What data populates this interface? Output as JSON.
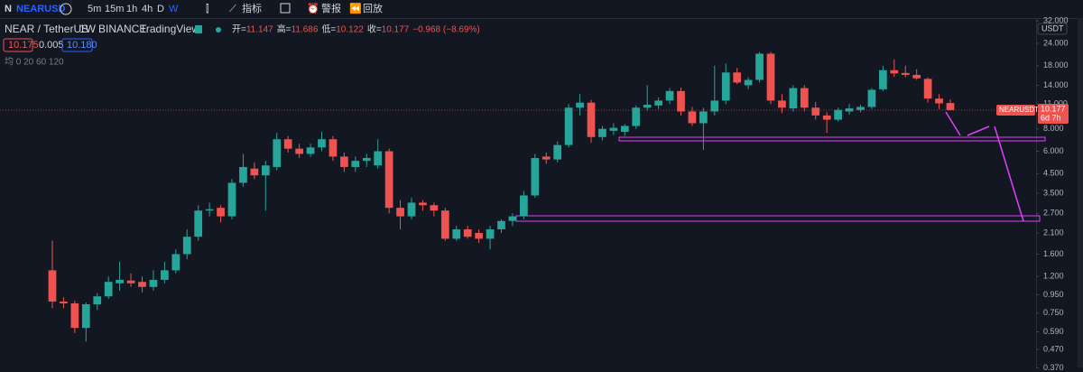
{
  "toolbar": {
    "symbol": "NEARUSD",
    "intervals": [
      "5m",
      "15m",
      "1h",
      "4h",
      "D",
      "W"
    ],
    "indicators": "指标",
    "alerts": "警报",
    "replay": "回放"
  },
  "legend": {
    "pair": "NEAR / TetherUS",
    "interval": "1W",
    "exchange": "BINANCE",
    "source": "TradingView",
    "ohlc": [
      {
        "label": "开=",
        "value": "11.147"
      },
      {
        "label": "高=",
        "value": "11.686"
      },
      {
        "label": "低=",
        "value": "10.122"
      },
      {
        "label": "收=",
        "value": "10.177"
      }
    ],
    "change": "−0.968 (−8.69%)",
    "bid": "10.175",
    "spread": "0.005",
    "ask": "10.180",
    "ma": "均 0 20 60 120"
  },
  "chart_data": {
    "type": "candlestick",
    "log_scale": true,
    "up_color": "#26a69a",
    "down_color": "#ef5350",
    "open": [
      1.3,
      0.87,
      0.85,
      0.62,
      0.84,
      0.93,
      1.1,
      1.14,
      1.12,
      1.05,
      1.15,
      1.3,
      1.6,
      2.0,
      2.8,
      2.9,
      2.6,
      4.0,
      4.8,
      4.4,
      4.9,
      7.0,
      6.2,
      5.8,
      6.3,
      7.0,
      5.6,
      4.9,
      5.3,
      5.0,
      6.0,
      2.9,
      2.6,
      3.1,
      3.0,
      2.8,
      1.95,
      2.2,
      2.1,
      1.95,
      2.2,
      2.45,
      2.6,
      3.4,
      5.6,
      5.4,
      6.5,
      10.5,
      11.2,
      7.2,
      7.8,
      7.7,
      8.3,
      10.5,
      10.8,
      11.5,
      13.0,
      10.0,
      8.6,
      10.0,
      11.5,
      16.5,
      14.0,
      15.0,
      21.0,
      11.5,
      10.4,
      13.5,
      10.5,
      9.5,
      9.0,
      10.0,
      10.2,
      10.6,
      13.3,
      17.0,
      16.4,
      16.0,
      15.2,
      11.8,
      11.147
    ],
    "high": [
      1.9,
      0.92,
      0.88,
      0.86,
      0.97,
      1.2,
      1.45,
      1.25,
      1.2,
      1.3,
      1.45,
      1.7,
      2.2,
      3.0,
      3.1,
      3.0,
      4.2,
      5.8,
      5.2,
      5.3,
      7.6,
      7.3,
      6.6,
      6.6,
      7.7,
      7.3,
      5.9,
      5.6,
      5.8,
      7.0,
      6.2,
      3.2,
      3.3,
      3.2,
      3.1,
      2.9,
      2.3,
      2.3,
      2.2,
      2.3,
      2.5,
      2.7,
      3.6,
      5.8,
      5.9,
      6.8,
      11.0,
      12.5,
      11.6,
      8.3,
      8.6,
      8.5,
      10.8,
      14.0,
      12.0,
      13.5,
      13.6,
      10.6,
      10.5,
      18.0,
      18.5,
      17.5,
      15.5,
      21.5,
      21.5,
      12.5,
      14.0,
      14.0,
      11.3,
      9.9,
      10.5,
      11.0,
      10.9,
      13.5,
      18.0,
      19.5,
      18.0,
      17.2,
      15.5,
      12.5,
      11.686
    ],
    "low": [
      0.8,
      0.8,
      0.58,
      0.52,
      0.78,
      0.9,
      1.0,
      1.05,
      0.98,
      1.0,
      1.1,
      1.25,
      1.5,
      1.9,
      2.6,
      2.4,
      2.5,
      3.8,
      4.2,
      2.8,
      4.7,
      5.9,
      5.5,
      5.6,
      6.0,
      5.3,
      4.6,
      4.6,
      4.9,
      4.8,
      2.7,
      2.2,
      2.5,
      2.8,
      2.6,
      1.9,
      1.9,
      1.95,
      1.85,
      1.7,
      2.1,
      2.3,
      2.5,
      3.3,
      5.1,
      5.2,
      6.3,
      9.5,
      6.7,
      6.9,
      7.4,
      7.3,
      8.0,
      10.1,
      10.3,
      11.0,
      9.5,
      8.3,
      6.1,
      9.5,
      11.0,
      14.2,
      13.3,
      14.5,
      11.0,
      9.8,
      10.0,
      10.0,
      9.0,
      7.6,
      8.8,
      9.6,
      9.9,
      10.3,
      13.0,
      15.6,
      15.5,
      15.0,
      11.2,
      10.3,
      10.122
    ],
    "close": [
      0.87,
      0.85,
      0.62,
      0.84,
      0.93,
      1.12,
      1.15,
      1.1,
      1.05,
      1.15,
      1.3,
      1.6,
      2.0,
      2.8,
      2.85,
      2.6,
      4.0,
      4.9,
      4.4,
      5.0,
      7.0,
      6.2,
      5.8,
      6.3,
      7.0,
      5.6,
      4.9,
      5.3,
      5.5,
      6.0,
      2.9,
      2.6,
      3.1,
      3.0,
      2.8,
      1.95,
      2.2,
      2.0,
      1.95,
      2.2,
      2.45,
      2.6,
      3.4,
      5.5,
      5.4,
      6.5,
      10.5,
      11.2,
      7.2,
      8.0,
      8.1,
      8.3,
      10.5,
      10.9,
      11.5,
      13.0,
      10.0,
      8.6,
      10.0,
      11.5,
      16.5,
      14.5,
      15.0,
      21.0,
      11.5,
      10.5,
      13.5,
      10.5,
      9.5,
      9.0,
      10.2,
      10.4,
      10.6,
      13.2,
      17.0,
      16.3,
      16.0,
      15.3,
      11.8,
      11.1,
      10.177
    ],
    "ylim": [
      0.373,
      33.2
    ],
    "yticks": [
      {
        "value": 32,
        "label": "32.000"
      },
      {
        "value": 24,
        "label": "24.000"
      },
      {
        "value": 18,
        "label": "18.000"
      },
      {
        "value": 14,
        "label": "14.000"
      },
      {
        "value": 11,
        "label": "11.000"
      },
      {
        "value": 8,
        "label": "8.000"
      },
      {
        "value": 6,
        "label": "6.000"
      },
      {
        "value": 4.5,
        "label": "4.500"
      },
      {
        "value": 3.5,
        "label": "3.500"
      },
      {
        "value": 2.7,
        "label": "2.700"
      },
      {
        "value": 2.1,
        "label": "2.100"
      },
      {
        "value": 1.6,
        "label": "1.600"
      },
      {
        "value": 1.2,
        "label": "1.200"
      },
      {
        "value": 0.95,
        "label": "0.950"
      },
      {
        "value": 0.75,
        "label": "0.750"
      },
      {
        "value": 0.59,
        "label": "0.590"
      },
      {
        "value": 0.47,
        "label": "0.470"
      },
      {
        "value": 0.37,
        "label": "0.370"
      }
    ],
    "currency": "USDT",
    "symbol_tag": "NEARUSDT",
    "last_price_label": "10.177",
    "countdown": "6d 7h"
  }
}
